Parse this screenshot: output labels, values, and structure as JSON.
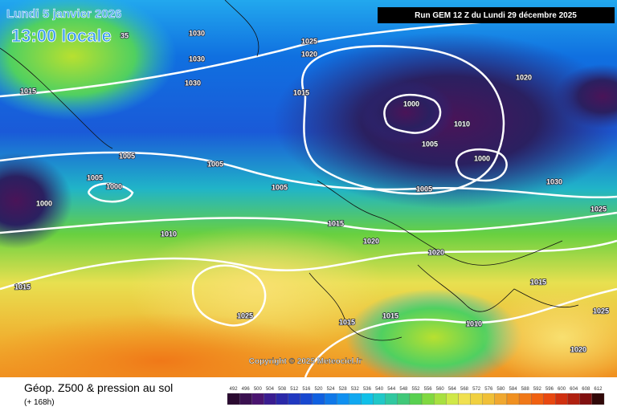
{
  "header": {
    "date": "Lundi 5 janvier 2026",
    "time": "13:00 locale",
    "run": "Run GEM 12 Z du Lundi 29 décembre 2025"
  },
  "copyright": "Copyright © 2025 Meteociel.fr",
  "footer": {
    "title": "Géop. Z500 & pression au sol",
    "lead": "(+ 168h)"
  },
  "colorbar": {
    "labels": [
      492,
      496,
      500,
      504,
      508,
      512,
      516,
      520,
      524,
      528,
      532,
      536,
      540,
      544,
      548,
      552,
      556,
      560,
      564,
      568,
      572,
      576,
      580,
      584,
      588,
      592,
      596,
      600,
      604,
      608,
      612
    ]
  },
  "isobar_labels": [
    "35",
    "1030",
    "1030",
    "1030",
    "1025",
    "1020",
    "1015",
    "1015",
    "1000",
    "1010",
    "1005",
    "1000",
    "1020",
    "1005",
    "1005",
    "1005",
    "1000",
    "1005",
    "1005",
    "1000",
    "1030",
    "1025",
    "1010",
    "1015",
    "1020",
    "1020",
    "1015",
    "1015",
    "1025",
    "1015",
    "1015",
    "1010",
    "1025",
    "1020"
  ]
}
